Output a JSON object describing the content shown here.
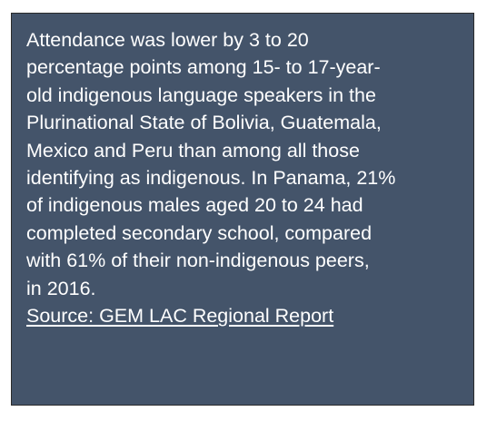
{
  "callout": {
    "lines": [
      "Attendance was lower by 3 to 20",
      "percentage points among 15- to 17-year-",
      "old indigenous language speakers in the",
      "Plurinational State of Bolivia, Guatemala,",
      "Mexico and Peru than among all those",
      "identifying as indigenous. In Panama, 21%",
      "of indigenous males aged 20 to 24 had",
      "completed secondary school, compared",
      "with 61% of their non-indigenous peers,",
      "in 2016."
    ],
    "source_link": "Source: GEM LAC Regional Report"
  },
  "colors": {
    "box_background": "#44546a",
    "box_border": "#2b2b2b",
    "text": "#ffffff"
  }
}
